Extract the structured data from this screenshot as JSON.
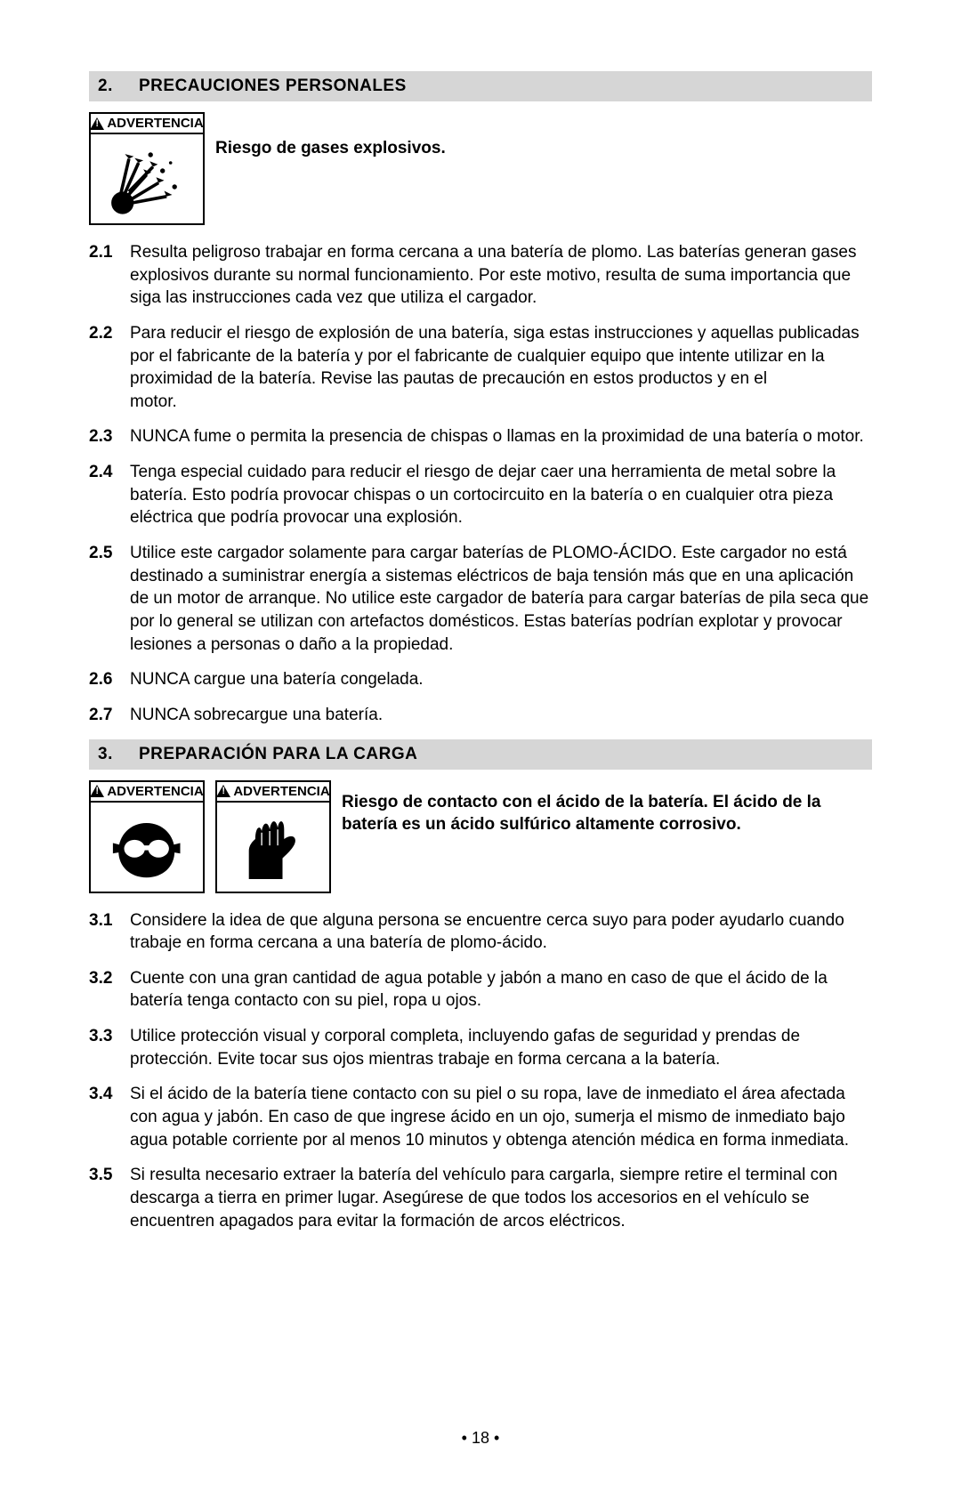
{
  "section2": {
    "num": "2.",
    "title": "PRECAUCIONES PERSONALES",
    "warning_label": "ADVERTENCIA",
    "risk": "Riesgo de gases explosivos.",
    "items": [
      {
        "num": "2.1",
        "text": "Resulta peligroso trabajar en forma cercana a una batería de plomo. Las baterías generan gases explosivos durante su normal funcionamiento. Por este motivo, resulta de suma importancia que siga las instrucciones cada vez que utiliza el cargador."
      },
      {
        "num": "2.2",
        "text": "Para reducir el riesgo de explosión de una batería, siga estas instrucciones y aquellas publicadas por el fabricante de la batería y por el fabricante de cualquier equipo que intente utilizar en la proximidad de la batería. Revise las pautas de precaución en estos productos y en el\nmotor."
      },
      {
        "num": "2.3",
        "text": "NUNCA fume o permita la presencia de chispas o llamas en la proximidad de una batería o motor."
      },
      {
        "num": "2.4",
        "text": "Tenga especial cuidado para reducir el riesgo de dejar caer una herramienta de metal sobre la batería. Esto podría provocar chispas o un cortocircuito en la batería o en cualquier otra pieza eléctrica que podría provocar una explosión."
      },
      {
        "num": "2.5",
        "text": "Utilice este cargador solamente para cargar baterías de PLOMO-ÁCIDO. Este cargador no está destinado a suministrar energía a sistemas eléctricos de baja tensión más que en una aplicación de un motor de arranque. No utilice este cargador de batería para cargar baterías de pila seca que por lo general se utilizan con artefactos domésticos. Estas baterías podrían explotar y provocar lesiones a personas o daño a la propiedad."
      },
      {
        "num": "2.6",
        "text": "NUNCA cargue una batería congelada."
      },
      {
        "num": "2.7",
        "text": "NUNCA sobrecargue una batería."
      }
    ]
  },
  "section3": {
    "num": "3.",
    "title": "PREPARACIÓN PARA LA CARGA",
    "warning_label": "ADVERTENCIA",
    "risk": "Riesgo de contacto con el ácido de la batería. El ácido de la batería es un ácido sulfúrico altamente corrosivo.",
    "items": [
      {
        "num": "3.1",
        "text": "Considere la idea de que alguna persona se encuentre cerca suyo para poder ayudarlo cuando trabaje en forma cercana a una batería de plomo-ácido."
      },
      {
        "num": "3.2",
        "text": "Cuente con una gran cantidad de agua potable y jabón a mano en caso de que el ácido de la batería tenga contacto con su piel, ropa u ojos."
      },
      {
        "num": "3.3",
        "text": "Utilice protección visual y corporal completa, incluyendo gafas de seguridad y prendas de protección. Evite tocar sus ojos mientras trabaje en forma cercana a la batería."
      },
      {
        "num": "3.4",
        "text": "Si el ácido de la batería tiene contacto con su piel o su ropa, lave de inmediato el área afectada con agua y jabón. En caso de que ingrese ácido en un ojo, sumerja el mismo de inmediato bajo agua potable corriente por al menos 10 minutos y obtenga atención médica en forma inmediata."
      },
      {
        "num": "3.5",
        "text": "Si resulta necesario extraer la batería del vehículo para cargarla, siempre retire el terminal con descarga a tierra en primer lugar. Asegúrese de que todos los accesorios en el vehículo se encuentren apagados para evitar la formación de arcos eléctricos."
      }
    ]
  },
  "page_number": "• 18 •"
}
